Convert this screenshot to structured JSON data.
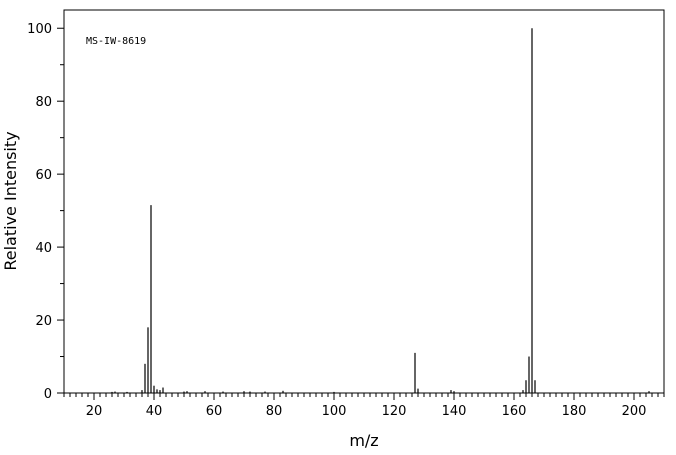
{
  "chart_data": {
    "type": "bar",
    "title": "",
    "annotation": "MS-IW-8619",
    "xlabel": "m/z",
    "ylabel": "Relative Intensity",
    "xlim": [
      10,
      210
    ],
    "ylim": [
      0,
      105
    ],
    "x_major_ticks": [
      20,
      40,
      60,
      80,
      100,
      120,
      140,
      160,
      180,
      200
    ],
    "x_minor_step": 2,
    "y_major_ticks": [
      0,
      20,
      40,
      60,
      80,
      100
    ],
    "y_minor_step": 10,
    "grid": false,
    "peaks": [
      {
        "mz": 26,
        "intensity": 0.3
      },
      {
        "mz": 27,
        "intensity": 0.4
      },
      {
        "mz": 31,
        "intensity": 0.3
      },
      {
        "mz": 36,
        "intensity": 0.8
      },
      {
        "mz": 37,
        "intensity": 8.0
      },
      {
        "mz": 38,
        "intensity": 18.0
      },
      {
        "mz": 39,
        "intensity": 51.5
      },
      {
        "mz": 40,
        "intensity": 2.0
      },
      {
        "mz": 41,
        "intensity": 1.0
      },
      {
        "mz": 42,
        "intensity": 0.8
      },
      {
        "mz": 43,
        "intensity": 1.5
      },
      {
        "mz": 50,
        "intensity": 0.4
      },
      {
        "mz": 51,
        "intensity": 0.5
      },
      {
        "mz": 57,
        "intensity": 0.5
      },
      {
        "mz": 63,
        "intensity": 0.4
      },
      {
        "mz": 70,
        "intensity": 0.5
      },
      {
        "mz": 72,
        "intensity": 0.4
      },
      {
        "mz": 77,
        "intensity": 0.4
      },
      {
        "mz": 83,
        "intensity": 0.6
      },
      {
        "mz": 100,
        "intensity": 0.3
      },
      {
        "mz": 127,
        "intensity": 11.0
      },
      {
        "mz": 128,
        "intensity": 1.2
      },
      {
        "mz": 139,
        "intensity": 0.8
      },
      {
        "mz": 140,
        "intensity": 0.5
      },
      {
        "mz": 163,
        "intensity": 0.8
      },
      {
        "mz": 164,
        "intensity": 3.5
      },
      {
        "mz": 165,
        "intensity": 10.0
      },
      {
        "mz": 166,
        "intensity": 100.0
      },
      {
        "mz": 167,
        "intensity": 3.5
      },
      {
        "mz": 205,
        "intensity": 0.5
      }
    ]
  }
}
